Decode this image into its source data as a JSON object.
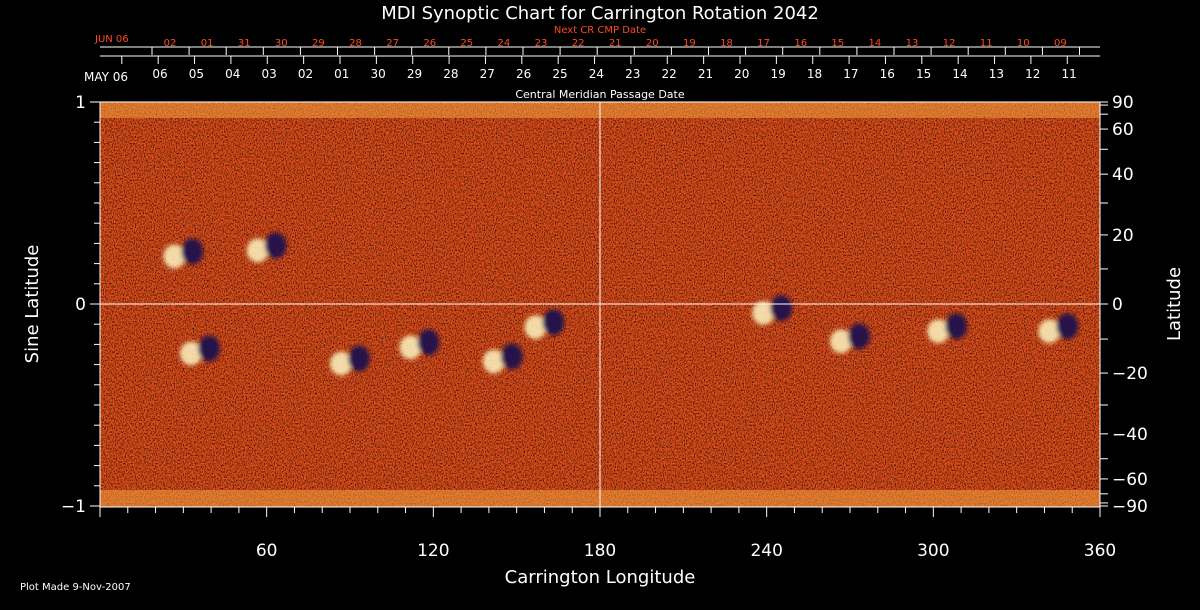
{
  "chart_data": {
    "type": "heatmap",
    "title": "MDI Synoptic Chart for Carrington Rotation 2042",
    "xlabel": "Carrington Longitude",
    "ylabel_left": "Sine Latitude",
    "ylabel_right": "Latitude",
    "x_range": [
      0,
      360
    ],
    "y_range": [
      -1,
      1
    ],
    "x_ticks": [
      60,
      120,
      180,
      240,
      300,
      360
    ],
    "y_ticks_left": [
      {
        "value": 1,
        "label": "1"
      },
      {
        "value": 0,
        "label": "0"
      },
      {
        "value": -1,
        "label": "−1"
      }
    ],
    "latitude_ticks": [
      90,
      60,
      40,
      20,
      0,
      -20,
      -40,
      -60,
      -90
    ],
    "latitude_tick_labels": [
      "90",
      "60",
      "40",
      "20",
      "0",
      "−20",
      "−40",
      "−60",
      "−90"
    ],
    "cmp_axis": {
      "label": "Central Meridian Passage Date",
      "month_label": "MAY 06",
      "dates": [
        "06",
        "05",
        "04",
        "03",
        "02",
        "01",
        "30",
        "29",
        "28",
        "27",
        "26",
        "25",
        "24",
        "23",
        "22",
        "21",
        "20",
        "19",
        "18",
        "17",
        "16",
        "15",
        "14",
        "13",
        "12",
        "11"
      ]
    },
    "next_cmp_axis": {
      "label": "Next CR CMP Date",
      "month_label": "JUN 06",
      "dates": [
        "02",
        "01",
        "31",
        "30",
        "29",
        "28",
        "27",
        "26",
        "25",
        "24",
        "23",
        "22",
        "21",
        "20",
        "19",
        "18",
        "17",
        "16",
        "15",
        "14",
        "13",
        "12",
        "11",
        "10",
        "09"
      ]
    },
    "active_regions": [
      {
        "lon": 30,
        "sinlat": 0.25,
        "polarity": "bipolar"
      },
      {
        "lon": 60,
        "sinlat": 0.28,
        "polarity": "bipolar"
      },
      {
        "lon": 36,
        "sinlat": -0.23,
        "polarity": "bipolar"
      },
      {
        "lon": 90,
        "sinlat": -0.28,
        "polarity": "bipolar"
      },
      {
        "lon": 115,
        "sinlat": -0.2,
        "polarity": "bipolar"
      },
      {
        "lon": 145,
        "sinlat": -0.27,
        "polarity": "bipolar"
      },
      {
        "lon": 160,
        "sinlat": -0.1,
        "polarity": "bipolar"
      },
      {
        "lon": 242,
        "sinlat": -0.03,
        "polarity": "bipolar"
      },
      {
        "lon": 270,
        "sinlat": -0.17,
        "polarity": "bipolar"
      },
      {
        "lon": 305,
        "sinlat": -0.12,
        "polarity": "bipolar"
      },
      {
        "lon": 345,
        "sinlat": -0.12,
        "polarity": "bipolar"
      }
    ],
    "colors": {
      "background": "#000000",
      "field": "#e8501a",
      "negative": "#1a1050",
      "positive": "#fff4c0"
    }
  },
  "footer": {
    "plot_made": "Plot Made  9-Nov-2007"
  }
}
